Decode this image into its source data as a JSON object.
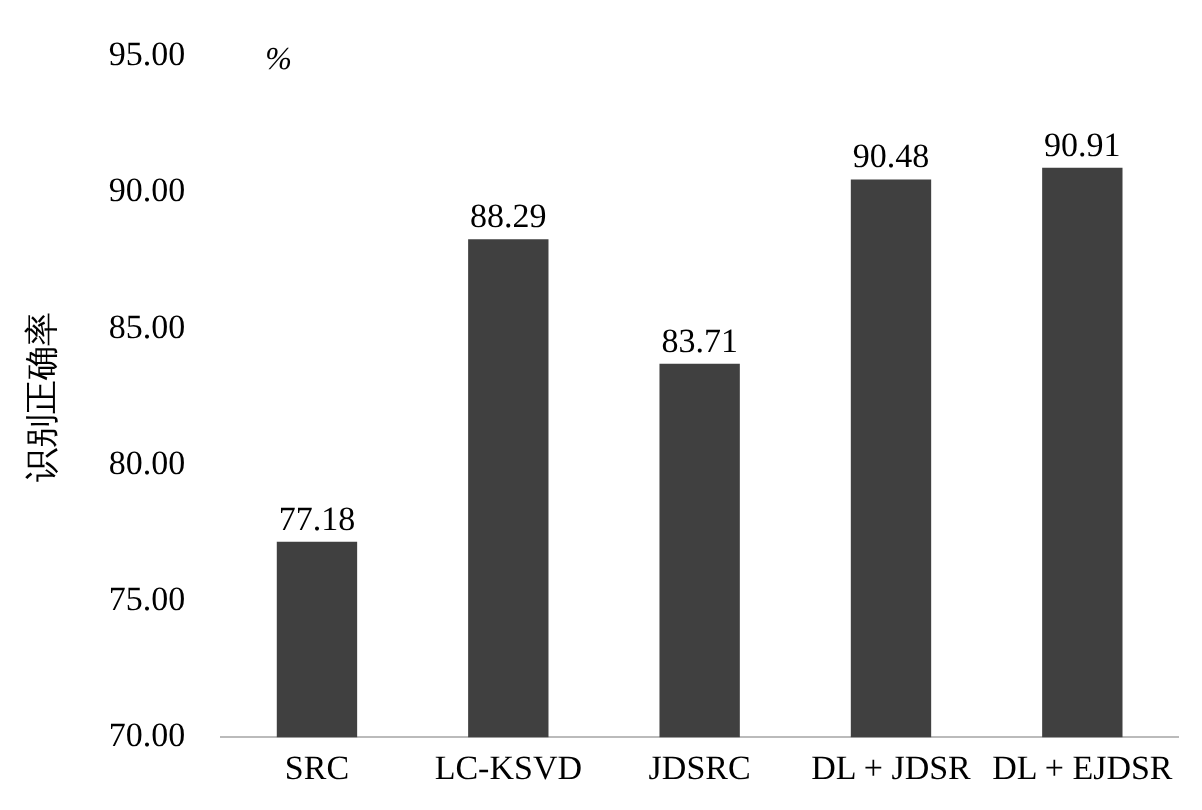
{
  "chart_data": {
    "type": "bar",
    "ylabel": "识别正确率",
    "annotations": [
      "%"
    ],
    "categories": [
      "SRC",
      "LC-KSVD",
      "JDSRC",
      "DL + JDSR",
      "DL + EJDSR"
    ],
    "values": [
      77.18,
      88.29,
      83.71,
      90.48,
      90.91
    ],
    "color": "#404040",
    "data_labels": true,
    "ylim": [
      70,
      95
    ],
    "yticks": [
      {
        "value": 70,
        "label": "70.00"
      },
      {
        "value": 75,
        "label": "75.00"
      },
      {
        "value": 80,
        "label": "80.00"
      },
      {
        "value": 85,
        "label": "85.00"
      },
      {
        "value": 90,
        "label": "90.00"
      },
      {
        "value": 95,
        "label": "95.00"
      }
    ],
    "grid": false,
    "legend": false
  }
}
